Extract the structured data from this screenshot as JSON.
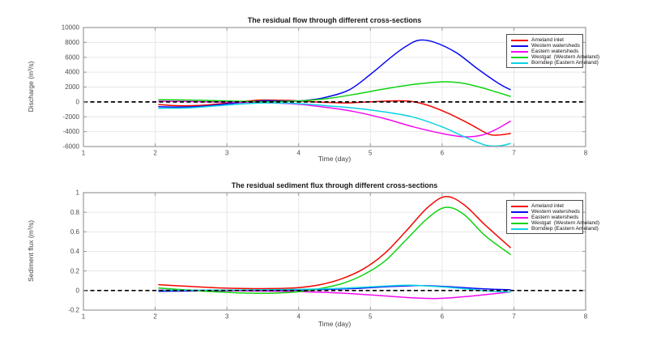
{
  "figure": {
    "background": "#ffffff"
  },
  "chart_data": [
    {
      "type": "line",
      "title": "The residual flow through different cross-sections",
      "xlabel": "Time (day)",
      "ylabel": "Discharge (m³/s)",
      "xlim": [
        1,
        8
      ],
      "ylim": [
        -6000,
        10000
      ],
      "xticks": [
        1,
        2,
        3,
        4,
        5,
        6,
        7,
        8
      ],
      "yticks": [
        -6000,
        -4000,
        -2000,
        0,
        2000,
        4000,
        6000,
        8000,
        10000
      ],
      "grid": true,
      "legend_position": "upper right",
      "zero_line": {
        "style": "dashed",
        "color": "#000000",
        "y": 0
      },
      "series": [
        {
          "name": "Ameland inlet",
          "color": "#f10800",
          "points": [
            [
              2.05,
              -350
            ],
            [
              2.3,
              -500
            ],
            [
              2.6,
              -480
            ],
            [
              2.9,
              -250
            ],
            [
              3.2,
              30
            ],
            [
              3.45,
              250
            ],
            [
              3.7,
              230
            ],
            [
              4.0,
              130
            ],
            [
              4.35,
              -60
            ],
            [
              4.7,
              -130
            ],
            [
              5.0,
              20
            ],
            [
              5.3,
              140
            ],
            [
              5.55,
              90
            ],
            [
              5.8,
              -450
            ],
            [
              6.1,
              -1600
            ],
            [
              6.4,
              -3050
            ],
            [
              6.65,
              -4350
            ],
            [
              6.8,
              -4430
            ],
            [
              6.95,
              -4250
            ]
          ]
        },
        {
          "name": "Western watersheds",
          "color": "#0b0bf1",
          "points": [
            [
              2.05,
              -650
            ],
            [
              2.35,
              -700
            ],
            [
              2.7,
              -560
            ],
            [
              3.0,
              -260
            ],
            [
              3.3,
              0
            ],
            [
              3.55,
              160
            ],
            [
              3.8,
              110
            ],
            [
              4.05,
              160
            ],
            [
              4.35,
              560
            ],
            [
              4.7,
              1600
            ],
            [
              5.0,
              3700
            ],
            [
              5.3,
              6100
            ],
            [
              5.5,
              7500
            ],
            [
              5.68,
              8300
            ],
            [
              5.9,
              8000
            ],
            [
              6.2,
              6600
            ],
            [
              6.5,
              4400
            ],
            [
              6.8,
              2400
            ],
            [
              6.95,
              1650
            ]
          ]
        },
        {
          "name": "Eastern watersheds",
          "color": "#f10bf1",
          "points": [
            [
              2.05,
              100
            ],
            [
              2.5,
              50
            ],
            [
              3.0,
              -30
            ],
            [
              3.5,
              -100
            ],
            [
              4.0,
              -320
            ],
            [
              4.4,
              -750
            ],
            [
              4.8,
              -1350
            ],
            [
              5.2,
              -2250
            ],
            [
              5.6,
              -3350
            ],
            [
              6.0,
              -4250
            ],
            [
              6.3,
              -4680
            ],
            [
              6.55,
              -4480
            ],
            [
              6.75,
              -3700
            ],
            [
              6.95,
              -2600
            ]
          ]
        },
        {
          "name": "Westgat  (Western Ameland)",
          "color": "#0ed40e",
          "points": [
            [
              2.05,
              300
            ],
            [
              2.4,
              260
            ],
            [
              2.8,
              180
            ],
            [
              3.2,
              80
            ],
            [
              3.6,
              30
            ],
            [
              4.0,
              120
            ],
            [
              4.4,
              450
            ],
            [
              4.8,
              1050
            ],
            [
              5.2,
              1750
            ],
            [
              5.6,
              2350
            ],
            [
              6.0,
              2700
            ],
            [
              6.25,
              2570
            ],
            [
              6.5,
              2050
            ],
            [
              6.75,
              1350
            ],
            [
              6.95,
              750
            ]
          ]
        },
        {
          "name": "Borndiep (Eastern Ameland)",
          "color": "#0bd3e3",
          "points": [
            [
              2.05,
              -850
            ],
            [
              2.5,
              -790
            ],
            [
              3.0,
              -420
            ],
            [
              3.5,
              -130
            ],
            [
              4.0,
              -230
            ],
            [
              4.4,
              -520
            ],
            [
              4.8,
              -850
            ],
            [
              5.2,
              -1350
            ],
            [
              5.6,
              -2050
            ],
            [
              6.0,
              -3350
            ],
            [
              6.3,
              -4650
            ],
            [
              6.6,
              -5800
            ],
            [
              6.8,
              -5900
            ],
            [
              6.95,
              -5600
            ]
          ]
        }
      ]
    },
    {
      "type": "line",
      "title": "The residual sediment flux through different cross-sections",
      "xlabel": "Time (day)",
      "ylabel": "Sediment flux (m³/s)",
      "xlim": [
        1,
        8
      ],
      "ylim": [
        -0.2,
        1
      ],
      "xticks": [
        1,
        2,
        3,
        4,
        5,
        6,
        7,
        8
      ],
      "yticks": [
        -0.2,
        0,
        0.2,
        0.4,
        0.6,
        0.8,
        1
      ],
      "grid": true,
      "legend_position": "upper right",
      "zero_line": {
        "style": "dashed",
        "color": "#000000",
        "y": 0
      },
      "series": [
        {
          "name": "Ameland inlet",
          "color": "#f10800",
          "points": [
            [
              2.05,
              0.06
            ],
            [
              2.4,
              0.045
            ],
            [
              2.8,
              0.03
            ],
            [
              3.2,
              0.022
            ],
            [
              3.6,
              0.02
            ],
            [
              4.0,
              0.03
            ],
            [
              4.3,
              0.06
            ],
            [
              4.6,
              0.12
            ],
            [
              4.9,
              0.22
            ],
            [
              5.2,
              0.38
            ],
            [
              5.5,
              0.61
            ],
            [
              5.8,
              0.85
            ],
            [
              6.05,
              0.96
            ],
            [
              6.3,
              0.88
            ],
            [
              6.6,
              0.67
            ],
            [
              6.95,
              0.44
            ]
          ]
        },
        {
          "name": "Western watersheds",
          "color": "#0b0bf1",
          "points": [
            [
              2.05,
              -0.008
            ],
            [
              2.6,
              -0.004
            ],
            [
              3.2,
              0.0
            ],
            [
              3.8,
              0.004
            ],
            [
              4.4,
              0.012
            ],
            [
              4.8,
              0.022
            ],
            [
              5.2,
              0.038
            ],
            [
              5.6,
              0.05
            ],
            [
              5.9,
              0.047
            ],
            [
              6.2,
              0.034
            ],
            [
              6.5,
              0.02
            ],
            [
              6.75,
              0.012
            ],
            [
              6.95,
              0.008
            ]
          ]
        },
        {
          "name": "Eastern watersheds",
          "color": "#f10bf1",
          "points": [
            [
              2.05,
              0.005
            ],
            [
              2.6,
              0.0
            ],
            [
              3.2,
              -0.004
            ],
            [
              3.8,
              -0.008
            ],
            [
              4.4,
              -0.02
            ],
            [
              4.8,
              -0.035
            ],
            [
              5.2,
              -0.055
            ],
            [
              5.6,
              -0.075
            ],
            [
              5.9,
              -0.082
            ],
            [
              6.2,
              -0.07
            ],
            [
              6.5,
              -0.05
            ],
            [
              6.75,
              -0.03
            ],
            [
              6.95,
              -0.015
            ]
          ]
        },
        {
          "name": "Westgat  (Western Ameland)",
          "color": "#0ed40e",
          "points": [
            [
              2.05,
              0.025
            ],
            [
              2.4,
              0.008
            ],
            [
              2.8,
              -0.012
            ],
            [
              3.2,
              -0.025
            ],
            [
              3.6,
              -0.028
            ],
            [
              4.0,
              -0.012
            ],
            [
              4.3,
              0.02
            ],
            [
              4.6,
              0.07
            ],
            [
              4.9,
              0.16
            ],
            [
              5.2,
              0.3
            ],
            [
              5.5,
              0.52
            ],
            [
              5.8,
              0.74
            ],
            [
              6.05,
              0.85
            ],
            [
              6.3,
              0.78
            ],
            [
              6.6,
              0.56
            ],
            [
              6.95,
              0.37
            ]
          ]
        },
        {
          "name": "Borndiep (Eastern Ameland)",
          "color": "#0bd3e3",
          "points": [
            [
              2.05,
              0.002
            ],
            [
              2.6,
              0.004
            ],
            [
              3.2,
              0.006
            ],
            [
              3.8,
              0.01
            ],
            [
              4.4,
              0.018
            ],
            [
              4.8,
              0.03
            ],
            [
              5.2,
              0.045
            ],
            [
              5.55,
              0.055
            ],
            [
              5.9,
              0.042
            ],
            [
              6.2,
              0.026
            ],
            [
              6.5,
              0.005
            ],
            [
              6.75,
              -0.01
            ],
            [
              6.95,
              -0.015
            ]
          ]
        }
      ]
    }
  ],
  "style": {
    "grid_color": "#e7e7e7",
    "axis_color": "#999999",
    "tick_label_color": "#4d4d4d",
    "plot_background": "#ffffff"
  }
}
